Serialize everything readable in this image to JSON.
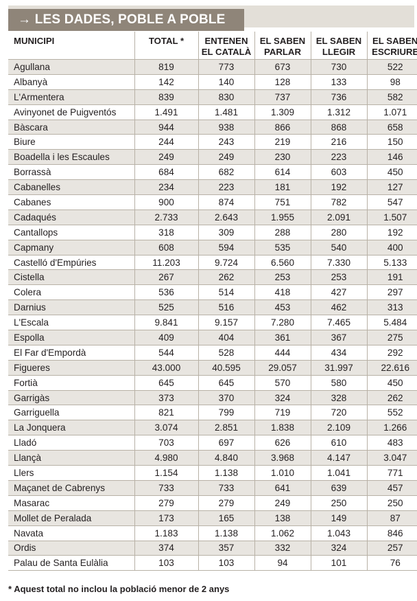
{
  "banner": {
    "arrow": "→",
    "title": "LES DADES, POBLE A POBLE"
  },
  "table": {
    "headers": [
      [
        "MUNICIPI"
      ],
      [
        "TOTAL *"
      ],
      [
        "ENTENEN",
        "EL CATALÀ"
      ],
      [
        "EL SABEN",
        "PARLAR"
      ],
      [
        "EL SABEN",
        "LLEGIR"
      ],
      [
        "EL SABEN",
        "ESCRIURE"
      ]
    ],
    "rows": [
      [
        "Agullana",
        "819",
        "773",
        "673",
        "730",
        "522"
      ],
      [
        "Albanyà",
        "142",
        "140",
        "128",
        "133",
        "98"
      ],
      [
        "L'Armentera",
        "839",
        "830",
        "737",
        "736",
        "582"
      ],
      [
        "Avinyonet de Puigventós",
        "1.491",
        "1.481",
        "1.309",
        "1.312",
        "1.071"
      ],
      [
        "Bàscara",
        "944",
        "938",
        "866",
        "868",
        "658"
      ],
      [
        "Biure",
        "244",
        "243",
        "219",
        "216",
        "150"
      ],
      [
        "Boadella i les Escaules",
        "249",
        "249",
        "230",
        "223",
        "146"
      ],
      [
        "Borrassà",
        "684",
        "682",
        "614",
        "603",
        "450"
      ],
      [
        "Cabanelles",
        "234",
        "223",
        "181",
        "192",
        "127"
      ],
      [
        "Cabanes",
        "900",
        "874",
        "751",
        "782",
        "547"
      ],
      [
        "Cadaqués",
        "2.733",
        "2.643",
        "1.955",
        "2.091",
        "1.507"
      ],
      [
        "Cantallops",
        "318",
        "309",
        "288",
        "280",
        "192"
      ],
      [
        "Capmany",
        "608",
        "594",
        "535",
        "540",
        "400"
      ],
      [
        "Castelló d'Empúries",
        "11.203",
        "9.724",
        "6.560",
        "7.330",
        "5.133"
      ],
      [
        "Cistella",
        "267",
        "262",
        "253",
        "253",
        "191"
      ],
      [
        "Colera",
        "536",
        "514",
        "418",
        "427",
        "297"
      ],
      [
        "Darnius",
        "525",
        "516",
        "453",
        "462",
        "313"
      ],
      [
        "L'Escala",
        "9.841",
        "9.157",
        "7.280",
        "7.465",
        "5.484"
      ],
      [
        "Espolla",
        "409",
        "404",
        "361",
        "367",
        "275"
      ],
      [
        "El Far d'Empordà",
        "544",
        "528",
        "444",
        "434",
        "292"
      ],
      [
        "Figueres",
        "43.000",
        "40.595",
        "29.057",
        "31.997",
        "22.616"
      ],
      [
        "Fortià",
        "645",
        "645",
        "570",
        "580",
        "450"
      ],
      [
        "Garrigàs",
        "373",
        "370",
        "324",
        "328",
        "262"
      ],
      [
        "Garriguella",
        "821",
        "799",
        "719",
        "720",
        "552"
      ],
      [
        "La Jonquera",
        "3.074",
        "2.851",
        "1.838",
        "2.109",
        "1.266"
      ],
      [
        "Lladó",
        "703",
        "697",
        "626",
        "610",
        "483"
      ],
      [
        "Llançà",
        "4.980",
        "4.840",
        "3.968",
        "4.147",
        "3.047"
      ],
      [
        "Llers",
        "1.154",
        "1.138",
        "1.010",
        "1.041",
        "771"
      ],
      [
        "Maçanet de Cabrenys",
        "733",
        "733",
        "641",
        "639",
        "457"
      ],
      [
        "Masarac",
        "279",
        "279",
        "249",
        "250",
        "250"
      ],
      [
        "Mollet de Peralada",
        "173",
        "165",
        "138",
        "149",
        "87"
      ],
      [
        "Navata",
        "1.183",
        "1.138",
        "1.062",
        "1.043",
        "846"
      ],
      [
        "Ordis",
        "374",
        "357",
        "332",
        "324",
        "257"
      ],
      [
        "Palau de Santa Eulàlia",
        "103",
        "103",
        "94",
        "101",
        "76"
      ]
    ]
  },
  "footnote": "* Aquest total no inclou la població menor de 2 anys",
  "colors": {
    "banner": "#8f8579",
    "banner_strip": "#e3dfd8",
    "row_shade": "#e8e5e0",
    "rule": "#b8b1a6"
  }
}
